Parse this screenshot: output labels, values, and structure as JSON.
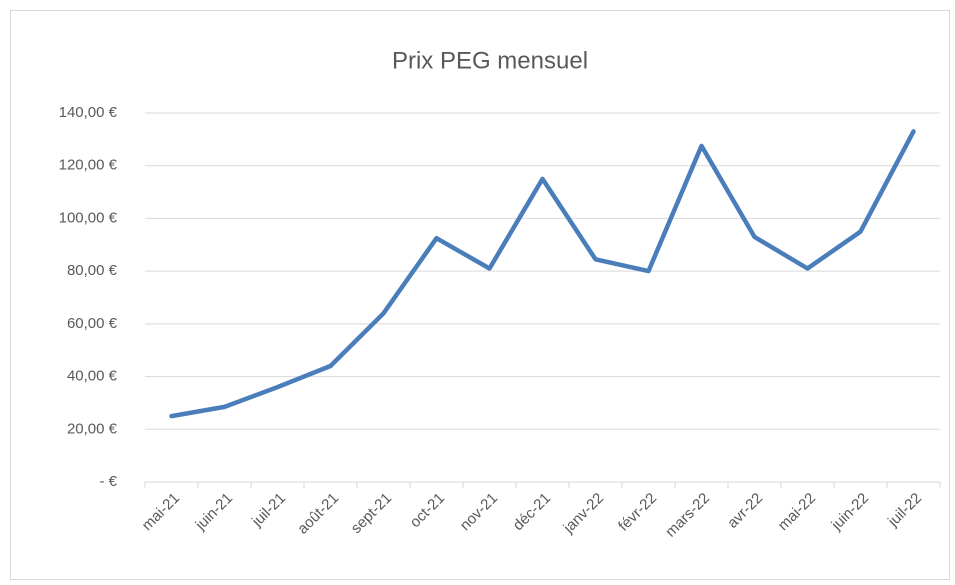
{
  "chart_data": {
    "type": "line",
    "title": "Prix PEG mensuel",
    "categories": [
      "mai-21",
      "juin-21",
      "juil-21",
      "août-21",
      "sept-21",
      "oct-21",
      "nov-21",
      "déc-21",
      "janv-22",
      "févr-22",
      "mars-22",
      "avr-22",
      "mai-22",
      "juin-22",
      "juil-22"
    ],
    "values": [
      25,
      28.5,
      36,
      44,
      64,
      92.5,
      81,
      115,
      84.5,
      80,
      127.5,
      93,
      81,
      95,
      133
    ],
    "color": "#4a7ebb",
    "ylim": [
      0,
      140
    ],
    "yticks": [
      {
        "value": 0,
        "label": "-   €"
      },
      {
        "value": 20,
        "label": "20,00 €"
      },
      {
        "value": 40,
        "label": "40,00 €"
      },
      {
        "value": 60,
        "label": "60,00 €"
      },
      {
        "value": 80,
        "label": "80,00 €"
      },
      {
        "value": 100,
        "label": "100,00 €"
      },
      {
        "value": 120,
        "label": "120,00 €"
      },
      {
        "value": 140,
        "label": "140,00 €"
      }
    ],
    "grid": true
  }
}
